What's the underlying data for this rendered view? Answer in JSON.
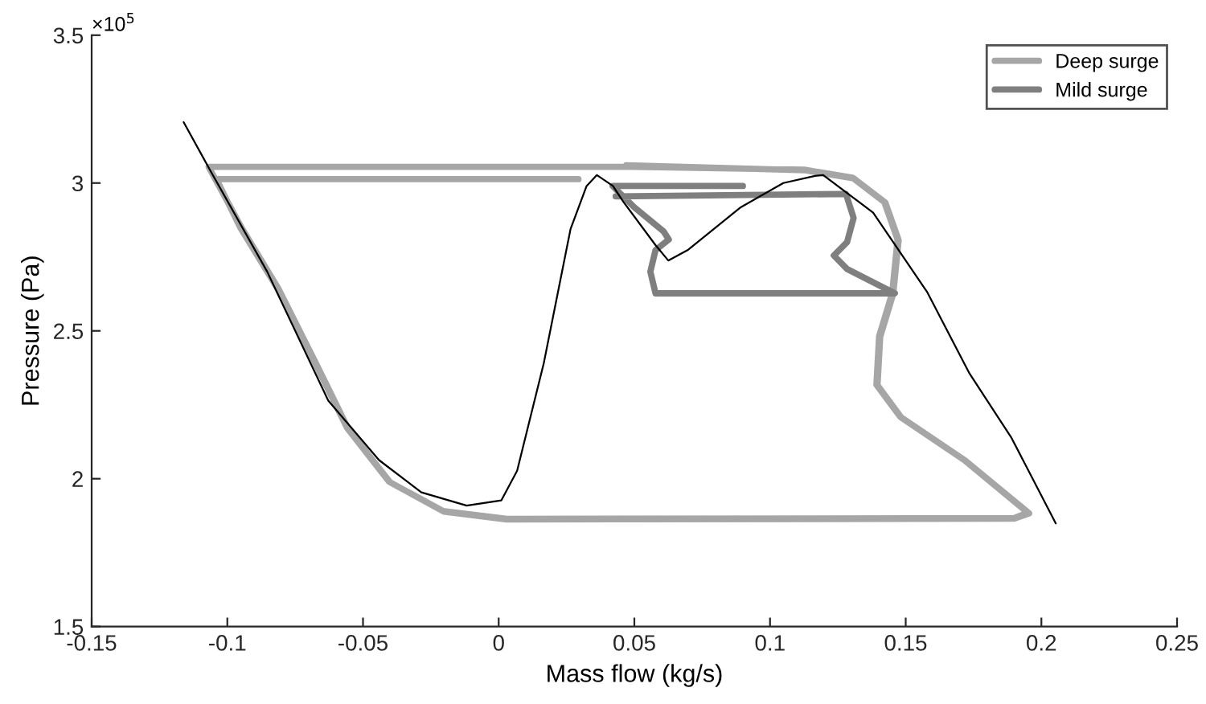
{
  "chart_data": {
    "type": "line",
    "xlabel": "Mass flow (kg/s)",
    "ylabel": "Pressure (Pa)",
    "annotations": [
      "×10$^{5}$"
    ],
    "xlim": [
      -0.15,
      0.25
    ],
    "xticks": [
      -0.15,
      -0.1,
      -0.05,
      0,
      0.05,
      0.1,
      0.15,
      0.2,
      0.25
    ],
    "ylim": [
      1.5,
      3.5
    ],
    "yticks": [
      1.5,
      2,
      2.5,
      3,
      3.5
    ],
    "grid": false,
    "legend": "top right",
    "marker": "none",
    "line_style": "solid",
    "series": [
      {
        "name": "Deep surge",
        "color": "#a6a6a6",
        "x": [
          0.0294,
          -0.104,
          -0.0951,
          -0.0816,
          -0.0676,
          -0.0559,
          -0.0404,
          -0.0206,
          0.003,
          0.19,
          0.195,
          0.1716,
          0.148,
          0.1392,
          0.1402,
          0.145,
          0.147,
          0.1421,
          0.1304,
          0.1127,
          0.05,
          -0.1069,
          -0.0945,
          -0.0812,
          -0.0672,
          -0.0555,
          -0.04,
          -0.0202,
          0.003,
          0.19,
          0.1955,
          0.172,
          0.1484,
          0.1396,
          0.1406,
          0.1454,
          0.1474,
          0.1425,
          0.1308,
          0.113,
          0.047
        ],
        "values": [
          3.013,
          3.013,
          2.847,
          2.645,
          2.39,
          2.172,
          1.99,
          1.891,
          1.864,
          1.867,
          1.885,
          2.063,
          2.209,
          2.318,
          2.482,
          2.627,
          2.809,
          2.936,
          3.018,
          3.045,
          3.055,
          3.055,
          2.845,
          2.643,
          2.388,
          2.17,
          1.988,
          1.889,
          1.862,
          1.865,
          1.883,
          2.061,
          2.207,
          2.316,
          2.48,
          2.625,
          2.807,
          2.934,
          3.016,
          3.043,
          3.06
        ]
      },
      {
        "name": "Mild surge",
        "color": "#7f7f7f",
        "x": [
          0.0431,
          0.128,
          0.1308,
          0.1284,
          0.1235,
          0.1284,
          0.146,
          0.0578,
          0.0559,
          0.0578,
          0.0627,
          0.0608,
          0.05,
          0.042,
          0.09
        ],
        "values": [
          2.955,
          2.963,
          2.882,
          2.8,
          2.755,
          2.709,
          2.627,
          2.627,
          2.7,
          2.773,
          2.809,
          2.836,
          2.918,
          2.99,
          2.99
        ]
      },
      {
        "color": "#000000",
        "x": [
          -0.1161,
          -0.1059,
          -0.0853,
          -0.0628,
          -0.0441,
          -0.0285,
          -0.0118,
          0.001,
          0.0068,
          0.0166,
          0.0265,
          0.0324,
          0.0362,
          0.0421,
          0.046,
          0.0578,
          0.0625,
          0.0696,
          0.0892,
          0.1049,
          0.1166,
          0.1196,
          0.138,
          0.158,
          0.1735,
          0.189,
          0.2053
        ],
        "values": [
          3.206,
          3.036,
          2.7,
          2.264,
          2.063,
          1.954,
          1.909,
          1.927,
          2.027,
          2.39,
          2.845,
          2.99,
          3.027,
          2.99,
          2.936,
          2.79,
          2.738,
          2.773,
          2.918,
          3.0,
          3.024,
          3.027,
          2.9,
          2.63,
          2.356,
          2.138,
          1.849
        ]
      }
    ]
  }
}
